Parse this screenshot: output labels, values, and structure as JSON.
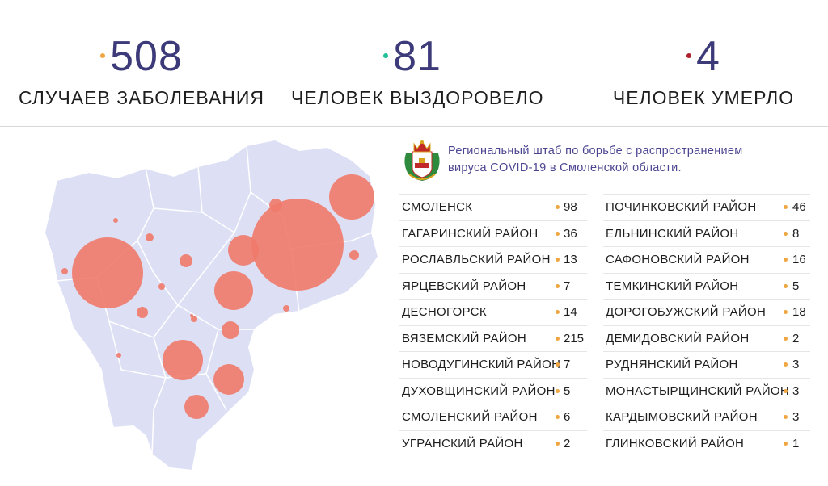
{
  "stats": {
    "cases": {
      "number": "508",
      "label": "Случаев заболевания",
      "dot_color": "#f0a640"
    },
    "recovered": {
      "number": "81",
      "label": "Человек выздоровело",
      "dot_color": "#1fbf9a"
    },
    "deaths": {
      "number": "4",
      "label": "Человек умерло",
      "dot_color": "#b0202a"
    }
  },
  "header": {
    "line1": "Региональный штаб по борьбе с распространением",
    "line2": "вируса  COVID-19 в Смоленской области."
  },
  "colors": {
    "number": "#3d3a7a",
    "map_fill": "#dde0f5",
    "map_border": "#ffffff",
    "bubble": "#f07a6a",
    "value_bullet": "#f0a640"
  },
  "districts_left": [
    {
      "name": "Смоленск",
      "value": "98"
    },
    {
      "name": "Гагаринский район",
      "value": "36"
    },
    {
      "name": "Рославльский район",
      "value": "13"
    },
    {
      "name": "Ярцевский район",
      "value": "7"
    },
    {
      "name": "Десногорск",
      "value": "14"
    },
    {
      "name": "Вяземский район",
      "value": "215"
    },
    {
      "name": "Новодугинский район",
      "value": "7"
    },
    {
      "name": "Духовщинский район",
      "value": "5"
    },
    {
      "name": "Смоленский район",
      "value": "6"
    },
    {
      "name": "Угранский район",
      "value": "2"
    }
  ],
  "districts_right": [
    {
      "name": "Починковский район",
      "value": "46"
    },
    {
      "name": "Ельнинский район",
      "value": "8"
    },
    {
      "name": "Сафоновский район",
      "value": "16"
    },
    {
      "name": "Темкинский район",
      "value": "5"
    },
    {
      "name": "Дорогобужский район",
      "value": "18"
    },
    {
      "name": "Демидовский район",
      "value": "2"
    },
    {
      "name": "Руднянский район",
      "value": "3"
    },
    {
      "name": "Монастырщинский район",
      "value": "3"
    },
    {
      "name": "Кардымовский район",
      "value": "3"
    },
    {
      "name": "Глинковский район",
      "value": "1"
    }
  ],
  "map_icon": "smolensk-region-map",
  "emblem_icon": "smolensk-coat-of-arms-icon"
}
